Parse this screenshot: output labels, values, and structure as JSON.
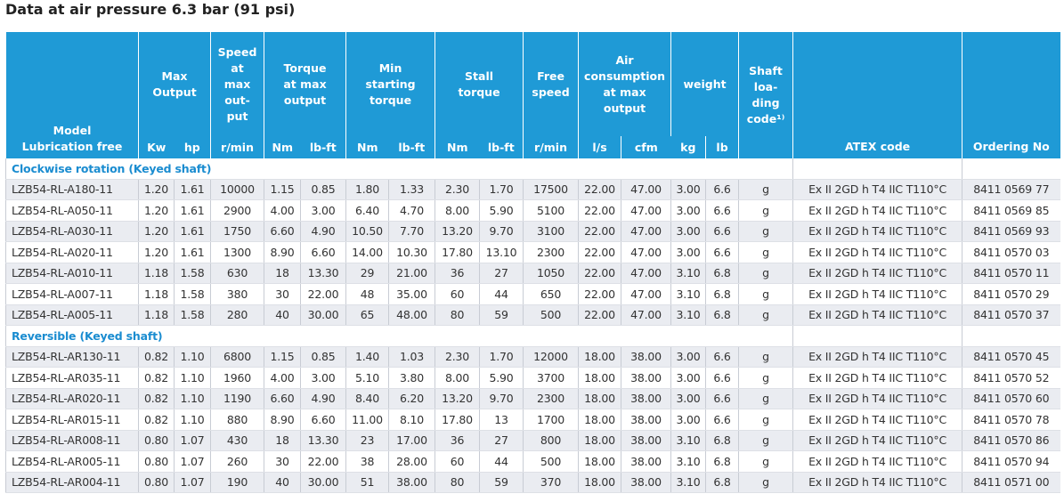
{
  "title": "Data at air pressure 6.3 bar (91 psi)",
  "table": {
    "group_headers": [
      "Model\nLubrication free",
      "Max\nOutput",
      "Speed\nat\nmax\nout-\nput",
      "Torque\nat max\noutput",
      "Min\nstarting\ntorque",
      "Stall\ntorque",
      "Free\nspeed",
      "Air\nconsumption\nat max\noutput",
      "weight",
      "Shaft\nloa-\nding\ncode¹⁾",
      "ATEX code",
      "Ordering No"
    ],
    "unit_headers": [
      "Kw",
      "hp",
      "r/min",
      "Nm",
      "lb-ft",
      "Nm",
      "lb-ft",
      "Nm",
      "lb-ft",
      "r/min",
      "l/s",
      "cfm",
      "kg",
      "lb"
    ],
    "sections": [
      {
        "title": "Clockwise rotation (Keyed shaft)",
        "rows": [
          [
            "LZB54-RL-A180-11",
            "1.20",
            "1.61",
            "10000",
            "1.15",
            "0.85",
            "1.80",
            "1.33",
            "2.30",
            "1.70",
            "17500",
            "22.00",
            "47.00",
            "3.00",
            "6.6",
            "g",
            "Ex II 2GD h T4 IIC T110°C",
            "8411 0569 77"
          ],
          [
            "LZB54-RL-A050-11",
            "1.20",
            "1.61",
            "2900",
            "4.00",
            "3.00",
            "6.40",
            "4.70",
            "8.00",
            "5.90",
            "5100",
            "22.00",
            "47.00",
            "3.00",
            "6.6",
            "g",
            "Ex II 2GD h T4 IIC T110°C",
            "8411 0569 85"
          ],
          [
            "LZB54-RL-A030-11",
            "1.20",
            "1.61",
            "1750",
            "6.60",
            "4.90",
            "10.50",
            "7.70",
            "13.20",
            "9.70",
            "3100",
            "22.00",
            "47.00",
            "3.00",
            "6.6",
            "g",
            "Ex II 2GD h T4 IIC T110°C",
            "8411 0569 93"
          ],
          [
            "LZB54-RL-A020-11",
            "1.20",
            "1.61",
            "1300",
            "8.90",
            "6.60",
            "14.00",
            "10.30",
            "17.80",
            "13.10",
            "2300",
            "22.00",
            "47.00",
            "3.00",
            "6.6",
            "g",
            "Ex II 2GD h T4 IIC T110°C",
            "8411 0570 03"
          ],
          [
            "LZB54-RL-A010-11",
            "1.18",
            "1.58",
            "630",
            "18",
            "13.30",
            "29",
            "21.00",
            "36",
            "27",
            "1050",
            "22.00",
            "47.00",
            "3.10",
            "6.8",
            "g",
            "Ex II 2GD h T4 IIC T110°C",
            "8411 0570 11"
          ],
          [
            "LZB54-RL-A007-11",
            "1.18",
            "1.58",
            "380",
            "30",
            "22.00",
            "48",
            "35.00",
            "60",
            "44",
            "650",
            "22.00",
            "47.00",
            "3.10",
            "6.8",
            "g",
            "Ex II 2GD h T4 IIC T110°C",
            "8411 0570 29"
          ],
          [
            "LZB54-RL-A005-11",
            "1.18",
            "1.58",
            "280",
            "40",
            "30.00",
            "65",
            "48.00",
            "80",
            "59",
            "500",
            "22.00",
            "47.00",
            "3.10",
            "6.8",
            "g",
            "Ex II 2GD h T4 IIC T110°C",
            "8411 0570 37"
          ]
        ]
      },
      {
        "title": "Reversible (Keyed shaft)",
        "rows": [
          [
            "LZB54-RL-AR130-11",
            "0.82",
            "1.10",
            "6800",
            "1.15",
            "0.85",
            "1.40",
            "1.03",
            "2.30",
            "1.70",
            "12000",
            "18.00",
            "38.00",
            "3.00",
            "6.6",
            "g",
            "Ex II 2GD h T4 IIC T110°C",
            "8411 0570 45"
          ],
          [
            "LZB54-RL-AR035-11",
            "0.82",
            "1.10",
            "1960",
            "4.00",
            "3.00",
            "5.10",
            "3.80",
            "8.00",
            "5.90",
            "3700",
            "18.00",
            "38.00",
            "3.00",
            "6.6",
            "g",
            "Ex II 2GD h T4 IIC T110°C",
            "8411 0570 52"
          ],
          [
            "LZB54-RL-AR020-11",
            "0.82",
            "1.10",
            "1190",
            "6.60",
            "4.90",
            "8.40",
            "6.20",
            "13.20",
            "9.70",
            "2300",
            "18.00",
            "38.00",
            "3.00",
            "6.6",
            "g",
            "Ex II 2GD h T4 IIC T110°C",
            "8411 0570 60"
          ],
          [
            "LZB54-RL-AR015-11",
            "0.82",
            "1.10",
            "880",
            "8.90",
            "6.60",
            "11.00",
            "8.10",
            "17.80",
            "13",
            "1700",
            "18.00",
            "38.00",
            "3.00",
            "6.6",
            "g",
            "Ex II 2GD h T4 IIC T110°C",
            "8411 0570 78"
          ],
          [
            "LZB54-RL-AR008-11",
            "0.80",
            "1.07",
            "430",
            "18",
            "13.30",
            "23",
            "17.00",
            "36",
            "27",
            "800",
            "18.00",
            "38.00",
            "3.10",
            "6.8",
            "g",
            "Ex II 2GD h T4 IIC T110°C",
            "8411 0570 86"
          ],
          [
            "LZB54-RL-AR005-11",
            "0.80",
            "1.07",
            "260",
            "30",
            "22.00",
            "38",
            "28.00",
            "60",
            "44",
            "500",
            "18.00",
            "38.00",
            "3.10",
            "6.8",
            "g",
            "Ex II 2GD h T4 IIC T110°C",
            "8411 0570 94"
          ],
          [
            "LZB54-RL-AR004-11",
            "0.80",
            "1.07",
            "190",
            "40",
            "30.00",
            "51",
            "38.00",
            "80",
            "59",
            "370",
            "18.00",
            "38.00",
            "3.10",
            "6.8",
            "g",
            "Ex II 2GD h T4 IIC T110°C",
            "8411 0571 00"
          ]
        ]
      }
    ]
  }
}
